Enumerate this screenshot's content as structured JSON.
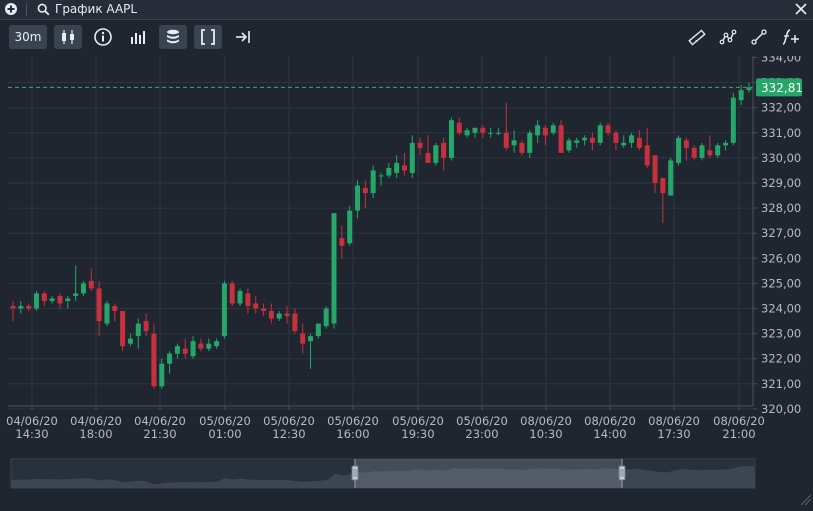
{
  "window": {
    "title": "График AAPL"
  },
  "toolbar": {
    "interval": "30m"
  },
  "chart": {
    "last_price_label": "332,81",
    "price_ticks": [
      "334,00",
      "333,00",
      "332,00",
      "331,00",
      "330,00",
      "329,00",
      "328,00",
      "327,00",
      "326,00",
      "325,00",
      "324,00",
      "323,00",
      "322,00",
      "321,00",
      "320,00"
    ],
    "time_ticks": [
      {
        "date": "04/06/20",
        "time": "14:30"
      },
      {
        "date": "04/06/20",
        "time": "18:00"
      },
      {
        "date": "04/06/20",
        "time": "21:30"
      },
      {
        "date": "05/06/20",
        "time": "01:00"
      },
      {
        "date": "05/06/20",
        "time": "12:30"
      },
      {
        "date": "05/06/20",
        "time": "16:00"
      },
      {
        "date": "05/06/20",
        "time": "19:30"
      },
      {
        "date": "05/06/20",
        "time": "23:00"
      },
      {
        "date": "08/06/20",
        "time": "10:30"
      },
      {
        "date": "08/06/20",
        "time": "14:00"
      },
      {
        "date": "08/06/20",
        "time": "17:30"
      },
      {
        "date": "08/06/20",
        "time": "21:00"
      }
    ],
    "colors": {
      "up": "#26a669",
      "down": "#c9303e",
      "bg": "#1f2630",
      "grid": "#2d3540",
      "axis_text": "#b5bcc6",
      "last_line": "#3aa67a"
    }
  },
  "chart_data": {
    "type": "candlestick",
    "symbol": "AAPL",
    "ylim": [
      320,
      334
    ],
    "last_price": 332.81,
    "candles": [
      {
        "o": 324.1,
        "h": 324.3,
        "l": 323.5,
        "c": 324.0
      },
      {
        "o": 324.0,
        "h": 324.3,
        "l": 323.8,
        "c": 324.1
      },
      {
        "o": 324.1,
        "h": 324.2,
        "l": 323.9,
        "c": 324.0
      },
      {
        "o": 324.0,
        "h": 324.7,
        "l": 323.9,
        "c": 324.6
      },
      {
        "o": 324.6,
        "h": 324.7,
        "l": 324.1,
        "c": 324.3
      },
      {
        "o": 324.3,
        "h": 324.5,
        "l": 324.2,
        "c": 324.4
      },
      {
        "o": 324.5,
        "h": 324.6,
        "l": 324.0,
        "c": 324.2
      },
      {
        "o": 324.3,
        "h": 324.5,
        "l": 324.0,
        "c": 324.4
      },
      {
        "o": 324.5,
        "h": 325.7,
        "l": 324.3,
        "c": 324.6
      },
      {
        "o": 324.6,
        "h": 325.1,
        "l": 324.5,
        "c": 325.0
      },
      {
        "o": 325.1,
        "h": 325.6,
        "l": 324.7,
        "c": 324.8
      },
      {
        "o": 324.8,
        "h": 325.1,
        "l": 322.9,
        "c": 323.5
      },
      {
        "o": 323.4,
        "h": 324.3,
        "l": 323.3,
        "c": 324.2
      },
      {
        "o": 324.1,
        "h": 324.2,
        "l": 323.5,
        "c": 323.9
      },
      {
        "o": 323.9,
        "h": 323.9,
        "l": 322.3,
        "c": 322.5
      },
      {
        "o": 322.6,
        "h": 323.0,
        "l": 322.5,
        "c": 322.8
      },
      {
        "o": 322.9,
        "h": 323.6,
        "l": 322.4,
        "c": 323.4
      },
      {
        "o": 323.5,
        "h": 323.8,
        "l": 322.9,
        "c": 323.1
      },
      {
        "o": 323.0,
        "h": 323.4,
        "l": 320.8,
        "c": 320.9
      },
      {
        "o": 320.9,
        "h": 322.0,
        "l": 320.8,
        "c": 321.8
      },
      {
        "o": 321.8,
        "h": 322.3,
        "l": 321.4,
        "c": 322.2
      },
      {
        "o": 322.2,
        "h": 322.6,
        "l": 322.0,
        "c": 322.5
      },
      {
        "o": 322.4,
        "h": 322.8,
        "l": 322.0,
        "c": 322.2
      },
      {
        "o": 322.1,
        "h": 322.9,
        "l": 322.0,
        "c": 322.7
      },
      {
        "o": 322.6,
        "h": 322.8,
        "l": 322.3,
        "c": 322.4
      },
      {
        "o": 322.4,
        "h": 322.8,
        "l": 322.3,
        "c": 322.6
      },
      {
        "o": 322.5,
        "h": 322.8,
        "l": 322.4,
        "c": 322.7
      },
      {
        "o": 322.9,
        "h": 325.1,
        "l": 322.8,
        "c": 325.0
      },
      {
        "o": 325.0,
        "h": 325.1,
        "l": 324.1,
        "c": 324.2
      },
      {
        "o": 324.2,
        "h": 324.8,
        "l": 324.1,
        "c": 324.7
      },
      {
        "o": 324.6,
        "h": 324.8,
        "l": 323.8,
        "c": 324.1
      },
      {
        "o": 324.2,
        "h": 324.5,
        "l": 323.8,
        "c": 324.0
      },
      {
        "o": 324.0,
        "h": 324.2,
        "l": 323.7,
        "c": 323.9
      },
      {
        "o": 323.9,
        "h": 324.2,
        "l": 323.4,
        "c": 323.6
      },
      {
        "o": 323.6,
        "h": 323.9,
        "l": 323.5,
        "c": 323.8
      },
      {
        "o": 323.8,
        "h": 324.1,
        "l": 323.4,
        "c": 323.7
      },
      {
        "o": 323.8,
        "h": 324.0,
        "l": 323.0,
        "c": 323.1
      },
      {
        "o": 323.0,
        "h": 323.4,
        "l": 322.2,
        "c": 322.6
      },
      {
        "o": 322.7,
        "h": 323.0,
        "l": 321.6,
        "c": 322.9
      },
      {
        "o": 322.9,
        "h": 323.4,
        "l": 322.8,
        "c": 323.4
      },
      {
        "o": 323.3,
        "h": 324.1,
        "l": 323.2,
        "c": 324.0
      },
      {
        "o": 323.4,
        "h": 327.8,
        "l": 323.2,
        "c": 327.8
      },
      {
        "o": 326.8,
        "h": 327.3,
        "l": 326.0,
        "c": 326.5
      },
      {
        "o": 326.6,
        "h": 328.1,
        "l": 326.5,
        "c": 327.9
      },
      {
        "o": 327.9,
        "h": 329.1,
        "l": 327.6,
        "c": 328.9
      },
      {
        "o": 328.8,
        "h": 329.1,
        "l": 328.0,
        "c": 328.6
      },
      {
        "o": 328.6,
        "h": 329.7,
        "l": 328.4,
        "c": 329.5
      },
      {
        "o": 329.3,
        "h": 329.4,
        "l": 328.9,
        "c": 329.3
      },
      {
        "o": 329.3,
        "h": 329.8,
        "l": 329.2,
        "c": 329.6
      },
      {
        "o": 329.4,
        "h": 330.1,
        "l": 329.2,
        "c": 329.8
      },
      {
        "o": 329.7,
        "h": 330.2,
        "l": 329.3,
        "c": 329.5
      },
      {
        "o": 329.4,
        "h": 330.9,
        "l": 329.2,
        "c": 330.6
      },
      {
        "o": 330.6,
        "h": 330.8,
        "l": 330.1,
        "c": 330.4
      },
      {
        "o": 330.2,
        "h": 330.9,
        "l": 329.8,
        "c": 329.8
      },
      {
        "o": 329.8,
        "h": 330.6,
        "l": 329.7,
        "c": 330.5
      },
      {
        "o": 330.6,
        "h": 330.8,
        "l": 329.5,
        "c": 330.0
      },
      {
        "o": 330.0,
        "h": 331.6,
        "l": 329.9,
        "c": 331.5
      },
      {
        "o": 331.4,
        "h": 331.6,
        "l": 330.9,
        "c": 331.0
      },
      {
        "o": 330.9,
        "h": 331.2,
        "l": 330.8,
        "c": 331.1
      },
      {
        "o": 331.0,
        "h": 331.2,
        "l": 330.8,
        "c": 331.2
      },
      {
        "o": 331.2,
        "h": 331.3,
        "l": 330.8,
        "c": 331.0
      },
      {
        "o": 331.0,
        "h": 331.2,
        "l": 330.8,
        "c": 331.0
      },
      {
        "o": 331.0,
        "h": 331.2,
        "l": 330.9,
        "c": 331.0
      },
      {
        "o": 331.0,
        "h": 332.2,
        "l": 330.3,
        "c": 330.4
      },
      {
        "o": 330.5,
        "h": 331.1,
        "l": 330.2,
        "c": 330.7
      },
      {
        "o": 330.6,
        "h": 330.7,
        "l": 330.1,
        "c": 330.2
      },
      {
        "o": 330.2,
        "h": 331.1,
        "l": 330.0,
        "c": 331.0
      },
      {
        "o": 330.9,
        "h": 331.5,
        "l": 330.6,
        "c": 331.3
      },
      {
        "o": 331.2,
        "h": 331.3,
        "l": 330.5,
        "c": 330.9
      },
      {
        "o": 331.0,
        "h": 331.4,
        "l": 330.9,
        "c": 331.3
      },
      {
        "o": 331.3,
        "h": 331.5,
        "l": 330.2,
        "c": 330.2
      },
      {
        "o": 330.3,
        "h": 330.8,
        "l": 330.2,
        "c": 330.7
      },
      {
        "o": 330.6,
        "h": 330.8,
        "l": 330.4,
        "c": 330.7
      },
      {
        "o": 330.7,
        "h": 330.9,
        "l": 330.5,
        "c": 330.8
      },
      {
        "o": 330.8,
        "h": 331.0,
        "l": 330.3,
        "c": 330.6
      },
      {
        "o": 330.6,
        "h": 331.4,
        "l": 330.5,
        "c": 331.3
      },
      {
        "o": 331.3,
        "h": 331.4,
        "l": 330.9,
        "c": 331.0
      },
      {
        "o": 331.0,
        "h": 331.1,
        "l": 330.3,
        "c": 330.6
      },
      {
        "o": 330.5,
        "h": 330.9,
        "l": 330.4,
        "c": 330.6
      },
      {
        "o": 330.6,
        "h": 331.0,
        "l": 330.4,
        "c": 330.9
      },
      {
        "o": 330.8,
        "h": 331.1,
        "l": 330.3,
        "c": 330.4
      },
      {
        "o": 330.5,
        "h": 331.2,
        "l": 329.6,
        "c": 329.7
      },
      {
        "o": 330.1,
        "h": 330.1,
        "l": 328.6,
        "c": 329.0
      },
      {
        "o": 329.2,
        "h": 329.2,
        "l": 327.4,
        "c": 328.6
      },
      {
        "o": 328.5,
        "h": 330.0,
        "l": 328.5,
        "c": 329.9
      },
      {
        "o": 329.8,
        "h": 330.9,
        "l": 329.7,
        "c": 330.8
      },
      {
        "o": 330.7,
        "h": 330.8,
        "l": 329.9,
        "c": 330.4
      },
      {
        "o": 330.4,
        "h": 330.5,
        "l": 329.9,
        "c": 330.0
      },
      {
        "o": 330.0,
        "h": 330.6,
        "l": 329.9,
        "c": 330.5
      },
      {
        "o": 330.3,
        "h": 330.9,
        "l": 330.0,
        "c": 330.1
      },
      {
        "o": 330.1,
        "h": 330.6,
        "l": 330.0,
        "c": 330.5
      },
      {
        "o": 330.5,
        "h": 330.7,
        "l": 330.3,
        "c": 330.6
      },
      {
        "o": 330.6,
        "h": 332.6,
        "l": 330.5,
        "c": 332.4
      },
      {
        "o": 332.3,
        "h": 332.9,
        "l": 332.1,
        "c": 332.7
      },
      {
        "o": 332.7,
        "h": 333.0,
        "l": 332.6,
        "c": 332.81
      }
    ]
  }
}
